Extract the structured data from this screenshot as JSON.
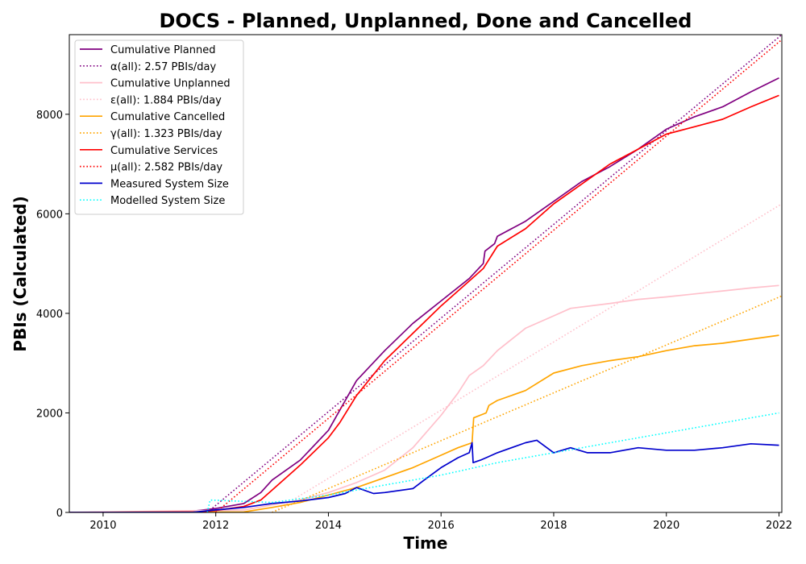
{
  "chart_data": {
    "type": "line",
    "title": "DOCS - Planned, Unplanned, Done  and Cancelled",
    "xlabel": "Time",
    "ylabel": "PBIs (Calculated)",
    "xlim": [
      2009.4,
      2022.05
    ],
    "ylim": [
      0,
      9600
    ],
    "xticks": [
      2010,
      2012,
      2014,
      2016,
      2018,
      2020,
      2022
    ],
    "yticks": [
      0,
      2000,
      4000,
      6000,
      8000
    ],
    "legend_position": "upper-left",
    "series": [
      {
        "name": "Cumulative Planned",
        "color": "#800080",
        "style": "solid",
        "points": [
          [
            2009.4,
            0
          ],
          [
            2011.5,
            15
          ],
          [
            2012.0,
            80
          ],
          [
            2012.5,
            180
          ],
          [
            2012.8,
            400
          ],
          [
            2013.0,
            650
          ],
          [
            2013.5,
            1050
          ],
          [
            2014.0,
            1650
          ],
          [
            2014.2,
            2050
          ],
          [
            2014.5,
            2650
          ],
          [
            2015.0,
            3250
          ],
          [
            2015.5,
            3800
          ],
          [
            2016.0,
            4250
          ],
          [
            2016.5,
            4700
          ],
          [
            2016.75,
            5000
          ],
          [
            2016.78,
            5250
          ],
          [
            2016.95,
            5400
          ],
          [
            2017.0,
            5550
          ],
          [
            2017.5,
            5850
          ],
          [
            2018.0,
            6250
          ],
          [
            2018.5,
            6650
          ],
          [
            2019.0,
            6950
          ],
          [
            2019.5,
            7300
          ],
          [
            2020.0,
            7700
          ],
          [
            2020.5,
            7950
          ],
          [
            2021.0,
            8150
          ],
          [
            2021.5,
            8450
          ],
          [
            2022.0,
            8730
          ]
        ]
      },
      {
        "name": "α(all): 2.57 PBIs/day",
        "color": "#800080",
        "style": "dotted",
        "points": [
          [
            2011.85,
            0
          ],
          [
            2022.05,
            9600
          ]
        ]
      },
      {
        "name": "Cumulative Unplanned",
        "color": "#ffc0cb",
        "style": "solid",
        "points": [
          [
            2009.4,
            0
          ],
          [
            2012.5,
            50
          ],
          [
            2013.0,
            150
          ],
          [
            2013.5,
            250
          ],
          [
            2014.0,
            400
          ],
          [
            2014.5,
            600
          ],
          [
            2015.0,
            850
          ],
          [
            2015.5,
            1300
          ],
          [
            2016.0,
            1950
          ],
          [
            2016.3,
            2400
          ],
          [
            2016.5,
            2750
          ],
          [
            2016.75,
            2950
          ],
          [
            2017.0,
            3250
          ],
          [
            2017.5,
            3700
          ],
          [
            2018.0,
            3950
          ],
          [
            2018.3,
            4100
          ],
          [
            2019.0,
            4200
          ],
          [
            2019.5,
            4280
          ],
          [
            2020.0,
            4330
          ],
          [
            2020.5,
            4390
          ],
          [
            2021.0,
            4450
          ],
          [
            2021.5,
            4510
          ],
          [
            2022.0,
            4560
          ]
        ]
      },
      {
        "name": "ε(all): 1.884 PBIs/day",
        "color": "#ffc0cb",
        "style": "dotted",
        "points": [
          [
            2013.0,
            0
          ],
          [
            2022.05,
            6200
          ]
        ]
      },
      {
        "name": "Cumulative Cancelled",
        "color": "#ffa500",
        "style": "solid",
        "points": [
          [
            2009.4,
            0
          ],
          [
            2012.5,
            10
          ],
          [
            2013.0,
            100
          ],
          [
            2013.5,
            200
          ],
          [
            2014.0,
            350
          ],
          [
            2014.5,
            500
          ],
          [
            2015.0,
            700
          ],
          [
            2015.5,
            900
          ],
          [
            2016.0,
            1150
          ],
          [
            2016.3,
            1300
          ],
          [
            2016.55,
            1400
          ],
          [
            2016.58,
            1900
          ],
          [
            2016.8,
            2000
          ],
          [
            2016.85,
            2150
          ],
          [
            2017.0,
            2250
          ],
          [
            2017.5,
            2450
          ],
          [
            2018.0,
            2800
          ],
          [
            2018.5,
            2950
          ],
          [
            2019.0,
            3050
          ],
          [
            2019.5,
            3130
          ],
          [
            2020.0,
            3250
          ],
          [
            2020.5,
            3350
          ],
          [
            2021.0,
            3400
          ],
          [
            2021.5,
            3480
          ],
          [
            2022.0,
            3560
          ]
        ]
      },
      {
        "name": "γ(all): 1.323 PBIs/day",
        "color": "#ffa500",
        "style": "dotted",
        "points": [
          [
            2013.0,
            0
          ],
          [
            2022.05,
            4350
          ]
        ]
      },
      {
        "name": "Cumulative Services",
        "color": "#ff0000",
        "style": "solid",
        "points": [
          [
            2009.4,
            0
          ],
          [
            2011.7,
            10
          ],
          [
            2012.0,
            40
          ],
          [
            2012.5,
            120
          ],
          [
            2012.8,
            250
          ],
          [
            2013.0,
            450
          ],
          [
            2013.5,
            950
          ],
          [
            2014.0,
            1500
          ],
          [
            2014.2,
            1800
          ],
          [
            2014.5,
            2350
          ],
          [
            2015.0,
            3050
          ],
          [
            2015.5,
            3600
          ],
          [
            2016.0,
            4150
          ],
          [
            2016.5,
            4650
          ],
          [
            2016.75,
            4900
          ],
          [
            2017.0,
            5350
          ],
          [
            2017.5,
            5700
          ],
          [
            2018.0,
            6200
          ],
          [
            2018.5,
            6600
          ],
          [
            2019.0,
            7000
          ],
          [
            2019.5,
            7300
          ],
          [
            2020.0,
            7600
          ],
          [
            2020.5,
            7750
          ],
          [
            2021.0,
            7900
          ],
          [
            2021.5,
            8150
          ],
          [
            2022.0,
            8380
          ]
        ]
      },
      {
        "name": "μ(all): 2.582 PBIs/day",
        "color": "#ff0000",
        "style": "dotted",
        "points": [
          [
            2012.0,
            0
          ],
          [
            2022.05,
            9500
          ]
        ]
      },
      {
        "name": "Measured System Size",
        "color": "#0000cd",
        "style": "solid",
        "points": [
          [
            2009.4,
            0
          ],
          [
            2011.6,
            5
          ],
          [
            2012.0,
            50
          ],
          [
            2012.5,
            100
          ],
          [
            2013.0,
            180
          ],
          [
            2013.5,
            230
          ],
          [
            2014.0,
            300
          ],
          [
            2014.3,
            380
          ],
          [
            2014.5,
            500
          ],
          [
            2014.8,
            380
          ],
          [
            2015.0,
            400
          ],
          [
            2015.5,
            480
          ],
          [
            2015.7,
            650
          ],
          [
            2016.0,
            900
          ],
          [
            2016.3,
            1100
          ],
          [
            2016.5,
            1200
          ],
          [
            2016.55,
            1400
          ],
          [
            2016.57,
            1000
          ],
          [
            2016.7,
            1050
          ],
          [
            2016.8,
            1100
          ],
          [
            2017.0,
            1200
          ],
          [
            2017.5,
            1400
          ],
          [
            2017.7,
            1450
          ],
          [
            2018.0,
            1200
          ],
          [
            2018.3,
            1300
          ],
          [
            2018.6,
            1200
          ],
          [
            2019.0,
            1200
          ],
          [
            2019.5,
            1300
          ],
          [
            2020.0,
            1250
          ],
          [
            2020.5,
            1250
          ],
          [
            2021.0,
            1300
          ],
          [
            2021.5,
            1380
          ],
          [
            2022.0,
            1350
          ]
        ]
      },
      {
        "name": "Modelled System Size",
        "color": "#00ffff",
        "style": "dotted",
        "points": [
          [
            2011.85,
            0
          ],
          [
            2011.9,
            250
          ],
          [
            2013.0,
            200
          ],
          [
            2014.0,
            350
          ],
          [
            2015.0,
            550
          ],
          [
            2016.0,
            750
          ],
          [
            2017.0,
            1000
          ],
          [
            2018.0,
            1200
          ],
          [
            2019.0,
            1400
          ],
          [
            2020.0,
            1600
          ],
          [
            2021.0,
            1800
          ],
          [
            2022.0,
            2000
          ]
        ]
      }
    ]
  }
}
